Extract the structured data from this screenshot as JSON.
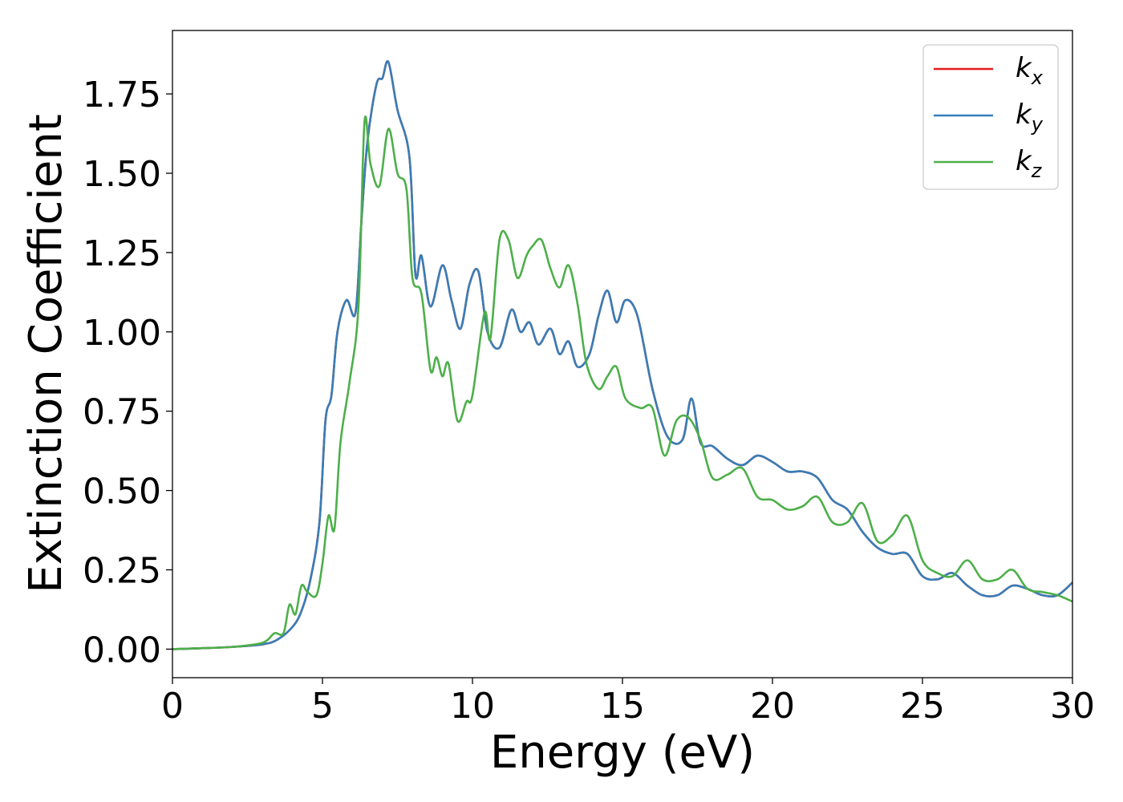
{
  "chart_data": {
    "type": "line",
    "xlabel": "Energy (eV)",
    "ylabel": "Extinction Coefficient",
    "xlim": [
      0,
      30
    ],
    "ylim": [
      -0.09,
      1.95
    ],
    "xticks": [
      0,
      5,
      10,
      15,
      20,
      25,
      30
    ],
    "xtick_labels": [
      "0",
      "5",
      "10",
      "15",
      "20",
      "25",
      "30"
    ],
    "yticks": [
      0.0,
      0.25,
      0.5,
      0.75,
      1.0,
      1.25,
      1.5,
      1.75
    ],
    "ytick_labels": [
      "0.00",
      "0.25",
      "0.50",
      "0.75",
      "1.00",
      "1.25",
      "1.50",
      "1.75"
    ],
    "grid": false,
    "legend_position": "top-right",
    "series": [
      {
        "name": "k_x",
        "label_base": "k",
        "label_sub": "x",
        "color": "#e41a1c",
        "x": [
          0,
          1,
          2,
          3,
          3.5,
          4,
          4.3,
          4.6,
          4.9,
          5.1,
          5.3,
          5.5,
          5.8,
          6.1,
          6.3,
          6.5,
          6.8,
          7.0,
          7.2,
          7.5,
          7.9,
          8.1,
          8.3,
          8.6,
          9.0,
          9.3,
          9.6,
          9.9,
          10.2,
          10.5,
          10.9,
          11.3,
          11.6,
          11.9,
          12.2,
          12.6,
          12.9,
          13.2,
          13.5,
          13.9,
          14.2,
          14.5,
          14.8,
          15.1,
          15.5,
          16.0,
          16.5,
          17.0,
          17.3,
          17.6,
          18.0,
          18.5,
          19.0,
          19.5,
          20.0,
          20.5,
          21.0,
          21.5,
          22.0,
          22.5,
          23.0,
          23.5,
          24.0,
          24.5,
          25.0,
          25.5,
          26.0,
          26.5,
          27.0,
          27.5,
          28.0,
          28.5,
          29.0,
          29.5,
          30.0
        ],
        "values": [
          0.0,
          0.003,
          0.007,
          0.015,
          0.03,
          0.07,
          0.12,
          0.22,
          0.4,
          0.72,
          0.8,
          1.0,
          1.1,
          1.06,
          1.35,
          1.6,
          1.78,
          1.8,
          1.85,
          1.7,
          1.55,
          1.18,
          1.24,
          1.08,
          1.21,
          1.1,
          1.01,
          1.15,
          1.19,
          1.0,
          0.95,
          1.07,
          1.0,
          1.03,
          0.96,
          1.01,
          0.93,
          0.97,
          0.89,
          0.93,
          1.05,
          1.13,
          1.03,
          1.1,
          1.05,
          0.82,
          0.67,
          0.66,
          0.79,
          0.65,
          0.64,
          0.6,
          0.58,
          0.61,
          0.59,
          0.56,
          0.56,
          0.54,
          0.47,
          0.44,
          0.37,
          0.32,
          0.3,
          0.3,
          0.23,
          0.22,
          0.24,
          0.2,
          0.17,
          0.17,
          0.2,
          0.19,
          0.17,
          0.17,
          0.21
        ]
      },
      {
        "name": "k_y",
        "label_base": "k",
        "label_sub": "y",
        "color": "#377eb8",
        "x": [
          0,
          1,
          2,
          3,
          3.5,
          4,
          4.3,
          4.6,
          4.9,
          5.1,
          5.3,
          5.5,
          5.8,
          6.1,
          6.3,
          6.5,
          6.8,
          7.0,
          7.2,
          7.5,
          7.9,
          8.1,
          8.3,
          8.6,
          9.0,
          9.3,
          9.6,
          9.9,
          10.2,
          10.5,
          10.9,
          11.3,
          11.6,
          11.9,
          12.2,
          12.6,
          12.9,
          13.2,
          13.5,
          13.9,
          14.2,
          14.5,
          14.8,
          15.1,
          15.5,
          16.0,
          16.5,
          17.0,
          17.3,
          17.6,
          18.0,
          18.5,
          19.0,
          19.5,
          20.0,
          20.5,
          21.0,
          21.5,
          22.0,
          22.5,
          23.0,
          23.5,
          24.0,
          24.5,
          25.0,
          25.5,
          26.0,
          26.5,
          27.0,
          27.5,
          28.0,
          28.5,
          29.0,
          29.5,
          30.0
        ],
        "values": [
          0.0,
          0.003,
          0.007,
          0.015,
          0.03,
          0.07,
          0.12,
          0.22,
          0.4,
          0.72,
          0.8,
          1.0,
          1.1,
          1.06,
          1.35,
          1.6,
          1.78,
          1.8,
          1.85,
          1.7,
          1.55,
          1.18,
          1.24,
          1.08,
          1.21,
          1.1,
          1.01,
          1.15,
          1.19,
          1.0,
          0.95,
          1.07,
          1.0,
          1.03,
          0.96,
          1.01,
          0.93,
          0.97,
          0.89,
          0.93,
          1.05,
          1.13,
          1.03,
          1.1,
          1.05,
          0.82,
          0.67,
          0.66,
          0.79,
          0.65,
          0.64,
          0.6,
          0.58,
          0.61,
          0.59,
          0.56,
          0.56,
          0.54,
          0.47,
          0.44,
          0.37,
          0.32,
          0.3,
          0.3,
          0.23,
          0.22,
          0.24,
          0.2,
          0.17,
          0.17,
          0.2,
          0.19,
          0.17,
          0.17,
          0.21
        ]
      },
      {
        "name": "k_z",
        "label_base": "k",
        "label_sub": "z",
        "color": "#4daf4a",
        "x": [
          0,
          1,
          2,
          3,
          3.4,
          3.7,
          3.9,
          4.1,
          4.3,
          4.5,
          4.8,
          5.0,
          5.2,
          5.4,
          5.6,
          5.9,
          6.2,
          6.4,
          6.6,
          6.9,
          7.2,
          7.5,
          7.8,
          8.0,
          8.3,
          8.6,
          8.8,
          9.0,
          9.2,
          9.5,
          9.8,
          10.0,
          10.4,
          10.6,
          10.9,
          11.2,
          11.5,
          11.8,
          12.0,
          12.3,
          12.6,
          12.9,
          13.2,
          13.5,
          13.8,
          14.2,
          14.5,
          14.8,
          15.1,
          15.6,
          16.0,
          16.4,
          16.8,
          17.2,
          17.6,
          18.0,
          18.5,
          19.0,
          19.5,
          20.0,
          20.5,
          21.0,
          21.5,
          22.0,
          22.5,
          23.0,
          23.5,
          24.0,
          24.5,
          25.0,
          25.5,
          26.0,
          26.5,
          27.0,
          27.5,
          28.0,
          28.5,
          29.0,
          29.5,
          30.0
        ],
        "values": [
          0.0,
          0.003,
          0.007,
          0.02,
          0.05,
          0.05,
          0.14,
          0.11,
          0.2,
          0.18,
          0.17,
          0.27,
          0.42,
          0.38,
          0.65,
          0.84,
          1.08,
          1.66,
          1.53,
          1.46,
          1.64,
          1.5,
          1.45,
          1.17,
          1.12,
          0.88,
          0.92,
          0.86,
          0.9,
          0.72,
          0.78,
          0.8,
          1.06,
          0.98,
          1.29,
          1.29,
          1.17,
          1.24,
          1.27,
          1.29,
          1.2,
          1.14,
          1.21,
          1.09,
          0.9,
          0.82,
          0.86,
          0.89,
          0.79,
          0.76,
          0.76,
          0.61,
          0.72,
          0.73,
          0.66,
          0.54,
          0.55,
          0.57,
          0.48,
          0.47,
          0.44,
          0.45,
          0.48,
          0.4,
          0.4,
          0.46,
          0.34,
          0.36,
          0.42,
          0.28,
          0.24,
          0.23,
          0.28,
          0.22,
          0.22,
          0.25,
          0.19,
          0.18,
          0.17,
          0.15
        ]
      }
    ]
  }
}
